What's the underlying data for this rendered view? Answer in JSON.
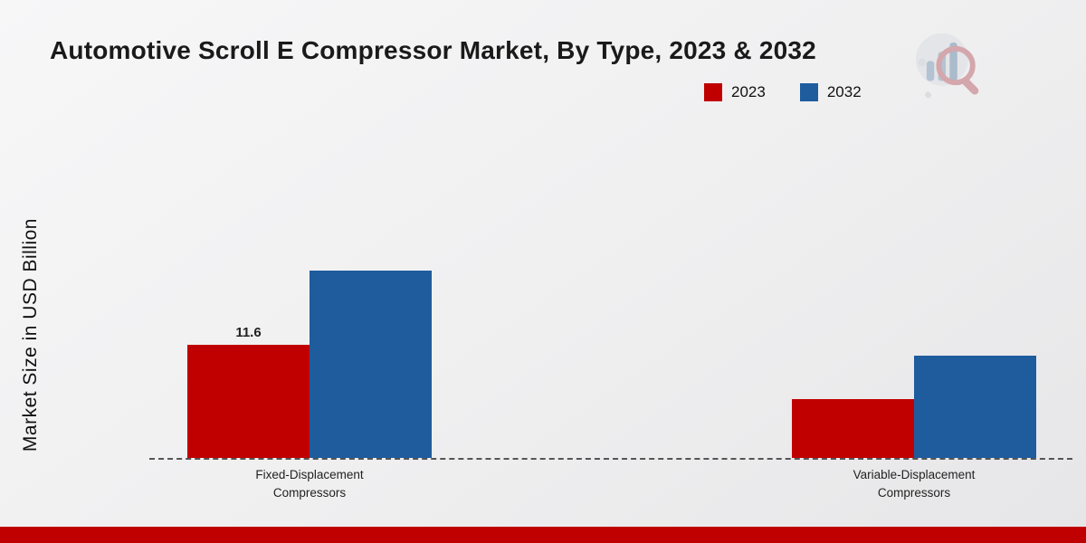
{
  "title": "Automotive Scroll E Compressor Market, By Type, 2023 & 2032",
  "ylabel": "Market Size in USD Billion",
  "legend": [
    {
      "label": "2023",
      "color": "#c00000"
    },
    {
      "label": "2032",
      "color": "#1e5c9e"
    }
  ],
  "icons": {
    "logo": "bar-chart-magnifier-logo"
  },
  "colors": {
    "accent_red": "#c00000",
    "accent_blue": "#1e5c9e",
    "footer_band": "#c00000",
    "baseline": "#555555"
  },
  "chart_data": {
    "type": "bar",
    "title": "Automotive Scroll E Compressor Market, By Type, 2023 & 2032",
    "categories": [
      "Fixed-Displacement\nCompressors",
      "Variable-Displacement\nCompressors"
    ],
    "series": [
      {
        "name": "2023",
        "color": "#c00000",
        "values": [
          11.6,
          6.0
        ]
      },
      {
        "name": "2032",
        "color": "#1e5c9e",
        "values": [
          19.2,
          10.5
        ]
      }
    ],
    "data_labels": [
      {
        "series_index": 0,
        "category_index": 0,
        "text": "11.6"
      }
    ],
    "xlabel": "",
    "ylabel": "Market Size in USD Billion",
    "ylim": [
      0,
      26
    ],
    "grid": false,
    "baseline_dashed": true,
    "legend_position": "top-right"
  }
}
